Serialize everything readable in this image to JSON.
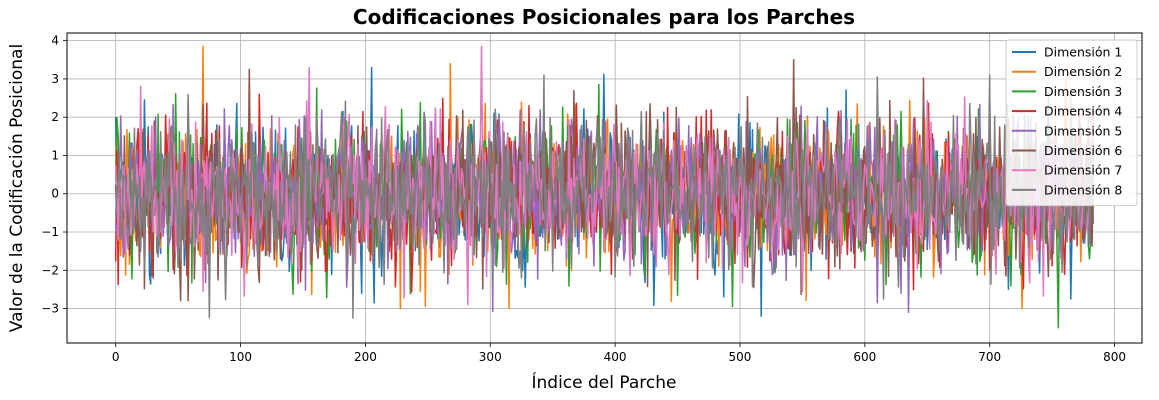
{
  "chart_data": {
    "type": "line",
    "title": "Codificaciones Posicionales para los Parches",
    "xlabel": "Índice del Parche",
    "ylabel": "Valor de la Codificación Posicional",
    "xlim": [
      -39,
      822
    ],
    "ylim": [
      -3.9,
      4.2
    ],
    "xticks": [
      0,
      100,
      200,
      300,
      400,
      500,
      600,
      700,
      800
    ],
    "yticks": [
      -3,
      -2,
      -1,
      0,
      1,
      2,
      3,
      4
    ],
    "xtick_labels": [
      "0",
      "100",
      "200",
      "300",
      "400",
      "500",
      "600",
      "700",
      "800"
    ],
    "ytick_labels": [
      "−3",
      "−2",
      "−1",
      "0",
      "1",
      "2",
      "3",
      "4"
    ],
    "grid": true,
    "legend_position": "top-right",
    "n_points": 784,
    "series": [
      {
        "name": "Dimensión 1",
        "color": "#1f77b4",
        "summary": {
          "min": -3.2,
          "max": 3.3
        },
        "key_points": [
          [
            0,
            2.0
          ],
          [
            205,
            3.3
          ],
          [
            207,
            -2.85
          ],
          [
            517,
            -3.2
          ],
          [
            715,
            -2.5
          ]
        ]
      },
      {
        "name": "Dimensión 2",
        "color": "#ff7f0e",
        "summary": {
          "min": -3.0,
          "max": 3.85
        },
        "key_points": [
          [
            70,
            3.85
          ],
          [
            228,
            -3.0
          ],
          [
            268,
            3.4
          ],
          [
            315,
            -3.0
          ],
          [
            726,
            -3.0
          ]
        ]
      },
      {
        "name": "Dimensión 3",
        "color": "#2ca02c",
        "summary": {
          "min": -3.5,
          "max": 2.85
        },
        "key_points": [
          [
            387,
            2.85
          ],
          [
            755,
            -3.5
          ],
          [
            780,
            -1.7
          ]
        ]
      },
      {
        "name": "Dimensión 4",
        "color": "#d62728",
        "summary": {
          "min": -2.6,
          "max": 2.6
        },
        "key_points": [
          [
            115,
            2.6
          ],
          [
            30,
            -2.2
          ]
        ]
      },
      {
        "name": "Dimensión 5",
        "color": "#9467bd",
        "summary": {
          "min": -3.1,
          "max": 2.4
        },
        "key_points": [
          [
            635,
            -3.1
          ],
          [
            610,
            -2.85
          ]
        ]
      },
      {
        "name": "Dimensión 6",
        "color": "#8c564b",
        "summary": {
          "min": -2.8,
          "max": 3.5
        },
        "key_points": [
          [
            52,
            -2.8
          ],
          [
            107,
            3.25
          ],
          [
            543,
            3.5
          ]
        ]
      },
      {
        "name": "Dimensión 7",
        "color": "#e377c2",
        "summary": {
          "min": -2.9,
          "max": 3.85
        },
        "key_points": [
          [
            155,
            3.3
          ],
          [
            293,
            3.85
          ],
          [
            70,
            -2.55
          ],
          [
            282,
            -2.9
          ]
        ]
      },
      {
        "name": "Dimensión 8",
        "color": "#7f7f7f",
        "summary": {
          "min": -3.25,
          "max": 3.1
        },
        "key_points": [
          [
            190,
            -3.25
          ],
          [
            343,
            3.1
          ],
          [
            610,
            3.05
          ]
        ]
      }
    ]
  }
}
